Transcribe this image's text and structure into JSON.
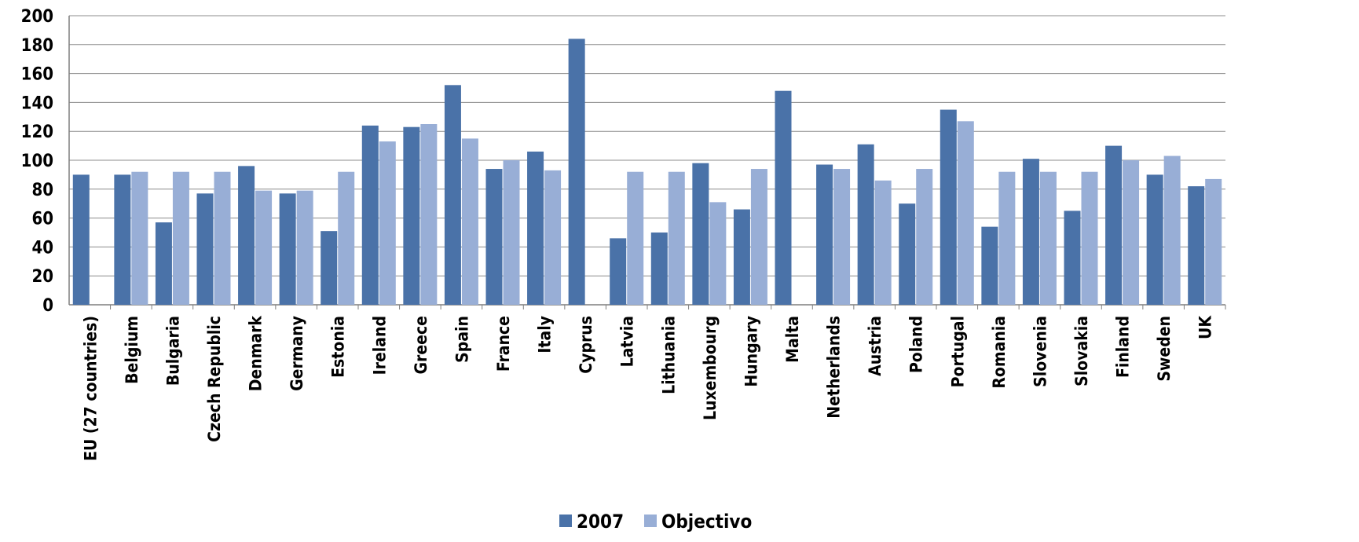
{
  "chart_data": {
    "type": "bar",
    "title": "",
    "xlabel": "",
    "ylabel": "",
    "ylim": [
      0,
      200
    ],
    "yticks": [
      0,
      20,
      40,
      60,
      80,
      100,
      120,
      140,
      160,
      180,
      200
    ],
    "grid": true,
    "legend_position": "bottom",
    "categories": [
      "EU (27 countries)",
      "Belgium",
      "Bulgaria",
      "Czech Republic",
      "Denmark",
      "Germany",
      "Estonia",
      "Ireland",
      "Greece",
      "Spain",
      "France",
      "Italy",
      "Cyprus",
      "Latvia",
      "Lithuania",
      "Luxembourg",
      "Hungary",
      "Malta",
      "Netherlands",
      "Austria",
      "Poland",
      "Portugal",
      "Romania",
      "Slovenia",
      "Slovakia",
      "Finland",
      "Sweden",
      "UK"
    ],
    "series": [
      {
        "name": "2007",
        "color": "#4a72a8",
        "values": [
          90,
          90,
          57,
          77,
          96,
          77,
          51,
          124,
          123,
          152,
          94,
          106,
          184,
          46,
          50,
          98,
          66,
          148,
          97,
          111,
          70,
          135,
          54,
          101,
          65,
          110,
          90,
          82
        ]
      },
      {
        "name": "Objectivo",
        "color": "#98aed6",
        "values": [
          null,
          92,
          92,
          92,
          79,
          79,
          92,
          113,
          125,
          115,
          100,
          93,
          null,
          92,
          92,
          71,
          94,
          null,
          94,
          86,
          94,
          127,
          92,
          92,
          92,
          100,
          103,
          87
        ]
      }
    ]
  },
  "colors": {
    "gridline": "#8c8c8c",
    "axis": "#7f7f7f",
    "title": "#1f3f6f"
  }
}
